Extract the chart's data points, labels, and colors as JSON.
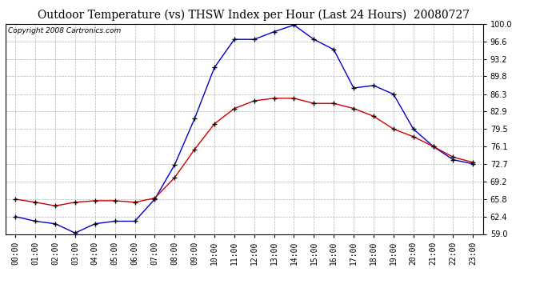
{
  "title": "Outdoor Temperature (vs) THSW Index per Hour (Last 24 Hours)  20080727",
  "copyright": "Copyright 2008 Cartronics.com",
  "hours": [
    "00:00",
    "01:00",
    "02:00",
    "03:00",
    "04:00",
    "05:00",
    "06:00",
    "07:00",
    "08:00",
    "09:00",
    "10:00",
    "11:00",
    "12:00",
    "13:00",
    "14:00",
    "15:00",
    "16:00",
    "17:00",
    "18:00",
    "19:00",
    "20:00",
    "21:00",
    "22:00",
    "23:00"
  ],
  "temp": [
    65.8,
    65.2,
    64.5,
    65.2,
    65.5,
    65.5,
    65.2,
    66.0,
    70.0,
    75.5,
    80.5,
    83.5,
    85.0,
    85.5,
    85.5,
    84.5,
    84.5,
    83.5,
    82.0,
    79.5,
    78.0,
    76.1,
    74.0,
    73.0
  ],
  "thsw": [
    62.4,
    61.5,
    61.0,
    59.2,
    61.0,
    61.5,
    61.5,
    65.8,
    72.5,
    81.5,
    91.5,
    97.0,
    97.0,
    98.5,
    99.8,
    97.0,
    95.0,
    87.5,
    88.0,
    86.3,
    79.5,
    76.1,
    73.5,
    72.7
  ],
  "ylim_min": 59.0,
  "ylim_max": 100.0,
  "yticks": [
    59.0,
    62.4,
    65.8,
    69.2,
    72.7,
    76.1,
    79.5,
    82.9,
    86.3,
    89.8,
    93.2,
    96.6,
    100.0
  ],
  "temp_color": "#cc0000",
  "thsw_color": "#0000cc",
  "bg_color": "#ffffff",
  "grid_color": "#aaaaaa",
  "title_fontsize": 10,
  "tick_fontsize": 7,
  "copyright_fontsize": 6.5
}
